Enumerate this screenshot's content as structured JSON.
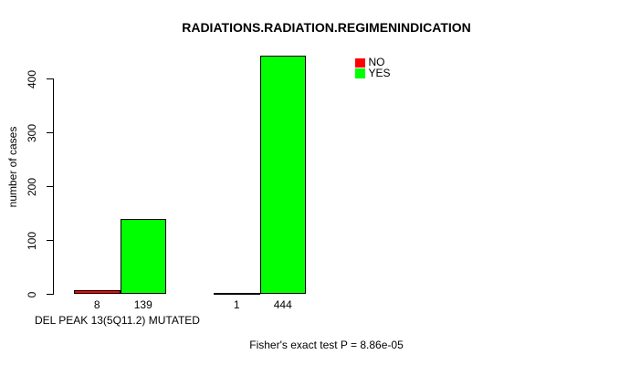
{
  "chart_data": {
    "type": "bar",
    "title": "RADIATIONS.RADIATION.REGIMENINDICATION",
    "ylabel": "number of cases",
    "xlabel": "DEL PEAK 13(5Q11.2) MUTATED",
    "annotation": "Fisher's exact test P = 8.86e-05",
    "yticks": [
      0,
      100,
      200,
      300,
      400
    ],
    "ylim": [
      0,
      450
    ],
    "grid": false,
    "legend_position": "top-right",
    "series": [
      {
        "name": "NO",
        "color": "#ff0000",
        "values": [
          8,
          1
        ]
      },
      {
        "name": "YES",
        "color": "#00ff00",
        "values": [
          139,
          444
        ]
      }
    ],
    "bar_labels": [
      "8",
      "139",
      "1",
      "444"
    ],
    "colors": {
      "bar_border": "#000000",
      "axis": "#000000",
      "text": "#000000",
      "background": "#ffffff"
    }
  }
}
